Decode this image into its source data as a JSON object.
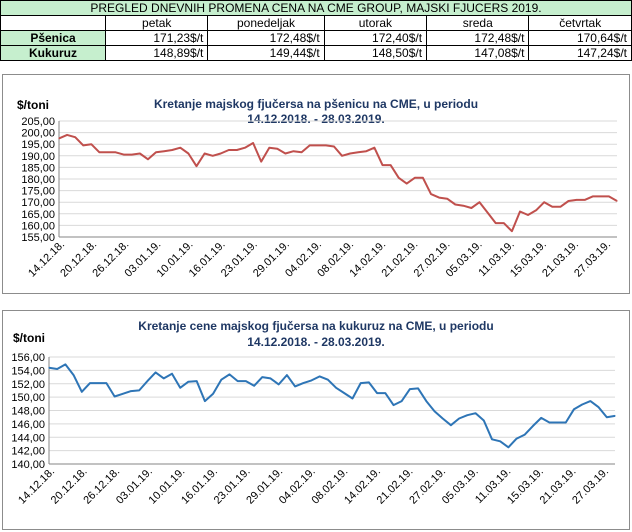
{
  "table": {
    "title": "PREGLED DNEVNIH PROMENA CENA NA CME GROUP, MAJSKI FJUCERS 2019.",
    "columns": [
      "petak",
      "ponedeljak",
      "utorak",
      "sreda",
      "četvrtak"
    ],
    "rows": [
      {
        "label": "Pšenica",
        "values": [
          "171,23$/t",
          "172,48$/t",
          "172,40$/t",
          "172,48$/t",
          "170,64$/t"
        ]
      },
      {
        "label": "Kukuruz",
        "values": [
          "148,89$/t",
          "149,44$/t",
          "148,50$/t",
          "147,08$/t",
          "147,24$/t"
        ]
      }
    ]
  },
  "chart_data": [
    {
      "type": "line",
      "title": "Kretanje majskog fjučersa na  pšenicu na CME, u periodu",
      "subtitle": "14.12.2018. - 28.03.2019.",
      "ylabel": "$/toni",
      "ylim": [
        155,
        205
      ],
      "ytick_step": 5,
      "grid": true,
      "color": "#c0504d",
      "xtick_labels": [
        "14.12.18.",
        "20.12.18.",
        "26.12.18.",
        "03.01.19.",
        "10.01.19.",
        "16.01.19.",
        "23.01.19.",
        "29.01.19.",
        "04.02.19.",
        "08.02.19.",
        "14.02.19.",
        "21.02.19.",
        "27.02.19.",
        "05.03.19.",
        "11.03.19.",
        "15.03.19.",
        "21.03.19.",
        "27.03.19."
      ],
      "values": [
        197.5,
        199.0,
        198.0,
        194.5,
        195.0,
        191.5,
        191.5,
        191.5,
        190.5,
        190.5,
        191.0,
        188.5,
        191.5,
        192.0,
        192.5,
        193.5,
        191.0,
        185.5,
        191.0,
        190.0,
        191.0,
        192.5,
        192.5,
        193.5,
        195.5,
        187.5,
        193.5,
        193.0,
        191.0,
        192.0,
        191.5,
        194.5,
        194.5,
        194.5,
        194.0,
        190.0,
        191.0,
        191.5,
        192.0,
        193.5,
        186.0,
        186.0,
        180.5,
        178.0,
        180.5,
        180.5,
        173.5,
        172.0,
        171.5,
        169.0,
        168.5,
        167.5,
        170.0,
        165.5,
        161.0,
        161.0,
        157.5,
        166.0,
        164.5,
        166.5,
        170.0,
        168.0,
        168.0,
        170.5,
        171.0,
        171.0,
        172.5,
        172.5,
        172.5,
        170.5
      ]
    },
    {
      "type": "line",
      "title": "Kretanje cene majskog fjučersa na  kukuruz na CME, u periodu",
      "subtitle": "14.12.2018. - 28.03.2019.",
      "ylabel": "$/toni",
      "ylim": [
        140,
        156
      ],
      "ytick_step": 2,
      "grid": true,
      "color": "#2e75b6",
      "xtick_labels": [
        "14.12.18.",
        "20.12.18.",
        "26.12.18.",
        "03.01.19.",
        "10.01.19.",
        "16.01.19.",
        "23.01.19.",
        "29.01.19.",
        "04.02.19.",
        "08.02.19.",
        "14.02.19.",
        "21.02.19.",
        "27.02.19.",
        "05.03.19.",
        "11.03.19.",
        "15.03.19.",
        "21.03.19.",
        "27.03.19."
      ],
      "values": [
        154.4,
        154.2,
        154.9,
        153.3,
        150.8,
        152.1,
        152.1,
        152.1,
        150.1,
        150.5,
        150.9,
        151.0,
        152.4,
        153.7,
        152.8,
        153.5,
        151.4,
        152.3,
        152.4,
        149.4,
        150.5,
        152.6,
        153.4,
        152.4,
        152.4,
        151.7,
        153.0,
        152.8,
        151.9,
        153.3,
        151.6,
        152.1,
        152.5,
        153.1,
        152.6,
        151.4,
        150.6,
        149.8,
        152.1,
        152.2,
        150.6,
        150.6,
        148.8,
        149.4,
        151.2,
        151.3,
        149.4,
        147.9,
        146.8,
        145.8,
        146.8,
        147.3,
        147.6,
        146.5,
        143.7,
        143.4,
        142.5,
        143.8,
        144.4,
        145.7,
        146.9,
        146.2,
        146.2,
        146.2,
        148.2,
        148.9,
        149.4,
        148.5,
        147.0,
        147.2
      ]
    }
  ]
}
